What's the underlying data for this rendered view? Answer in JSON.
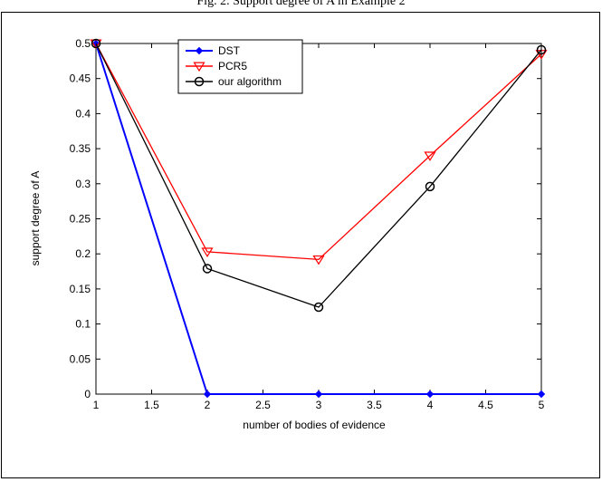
{
  "caption": "Fig. 2. Support degree of A in Example 2",
  "chart_data": {
    "type": "line",
    "title": "",
    "xlabel": "number of bodies of evidence",
    "ylabel": "support degree of A",
    "xlim": [
      1,
      5
    ],
    "ylim": [
      0,
      0.5
    ],
    "xticks": [
      1,
      1.5,
      2,
      2.5,
      3,
      3.5,
      4,
      4.5,
      5
    ],
    "xtick_labels": [
      "1",
      "1.5",
      "2",
      "2.5",
      "3",
      "3.5",
      "4",
      "4.5",
      "5"
    ],
    "yticks": [
      0,
      0.05,
      0.1,
      0.15,
      0.2,
      0.25,
      0.3,
      0.35,
      0.4,
      0.45,
      0.5
    ],
    "ytick_labels": [
      "0",
      "0.05",
      "0.1",
      "0.15",
      "0.2",
      "0.25",
      "0.3",
      "0.35",
      "0.4",
      "0.45",
      "0.5"
    ],
    "grid": false,
    "legend_position": "top-left",
    "x": [
      1,
      2,
      3,
      4,
      5
    ],
    "series": [
      {
        "name": "DST",
        "values": [
          0.5,
          0,
          0,
          0,
          0
        ],
        "color": "#0000ff",
        "marker": "diamond"
      },
      {
        "name": "PCR5",
        "values": [
          0.5,
          0.203,
          0.192,
          0.34,
          0.485
        ],
        "color": "#ff0000",
        "marker": "triangle-down"
      },
      {
        "name": "our algorithm",
        "values": [
          0.5,
          0.179,
          0.124,
          0.296,
          0.491
        ],
        "color": "#000000",
        "marker": "circle"
      }
    ]
  }
}
